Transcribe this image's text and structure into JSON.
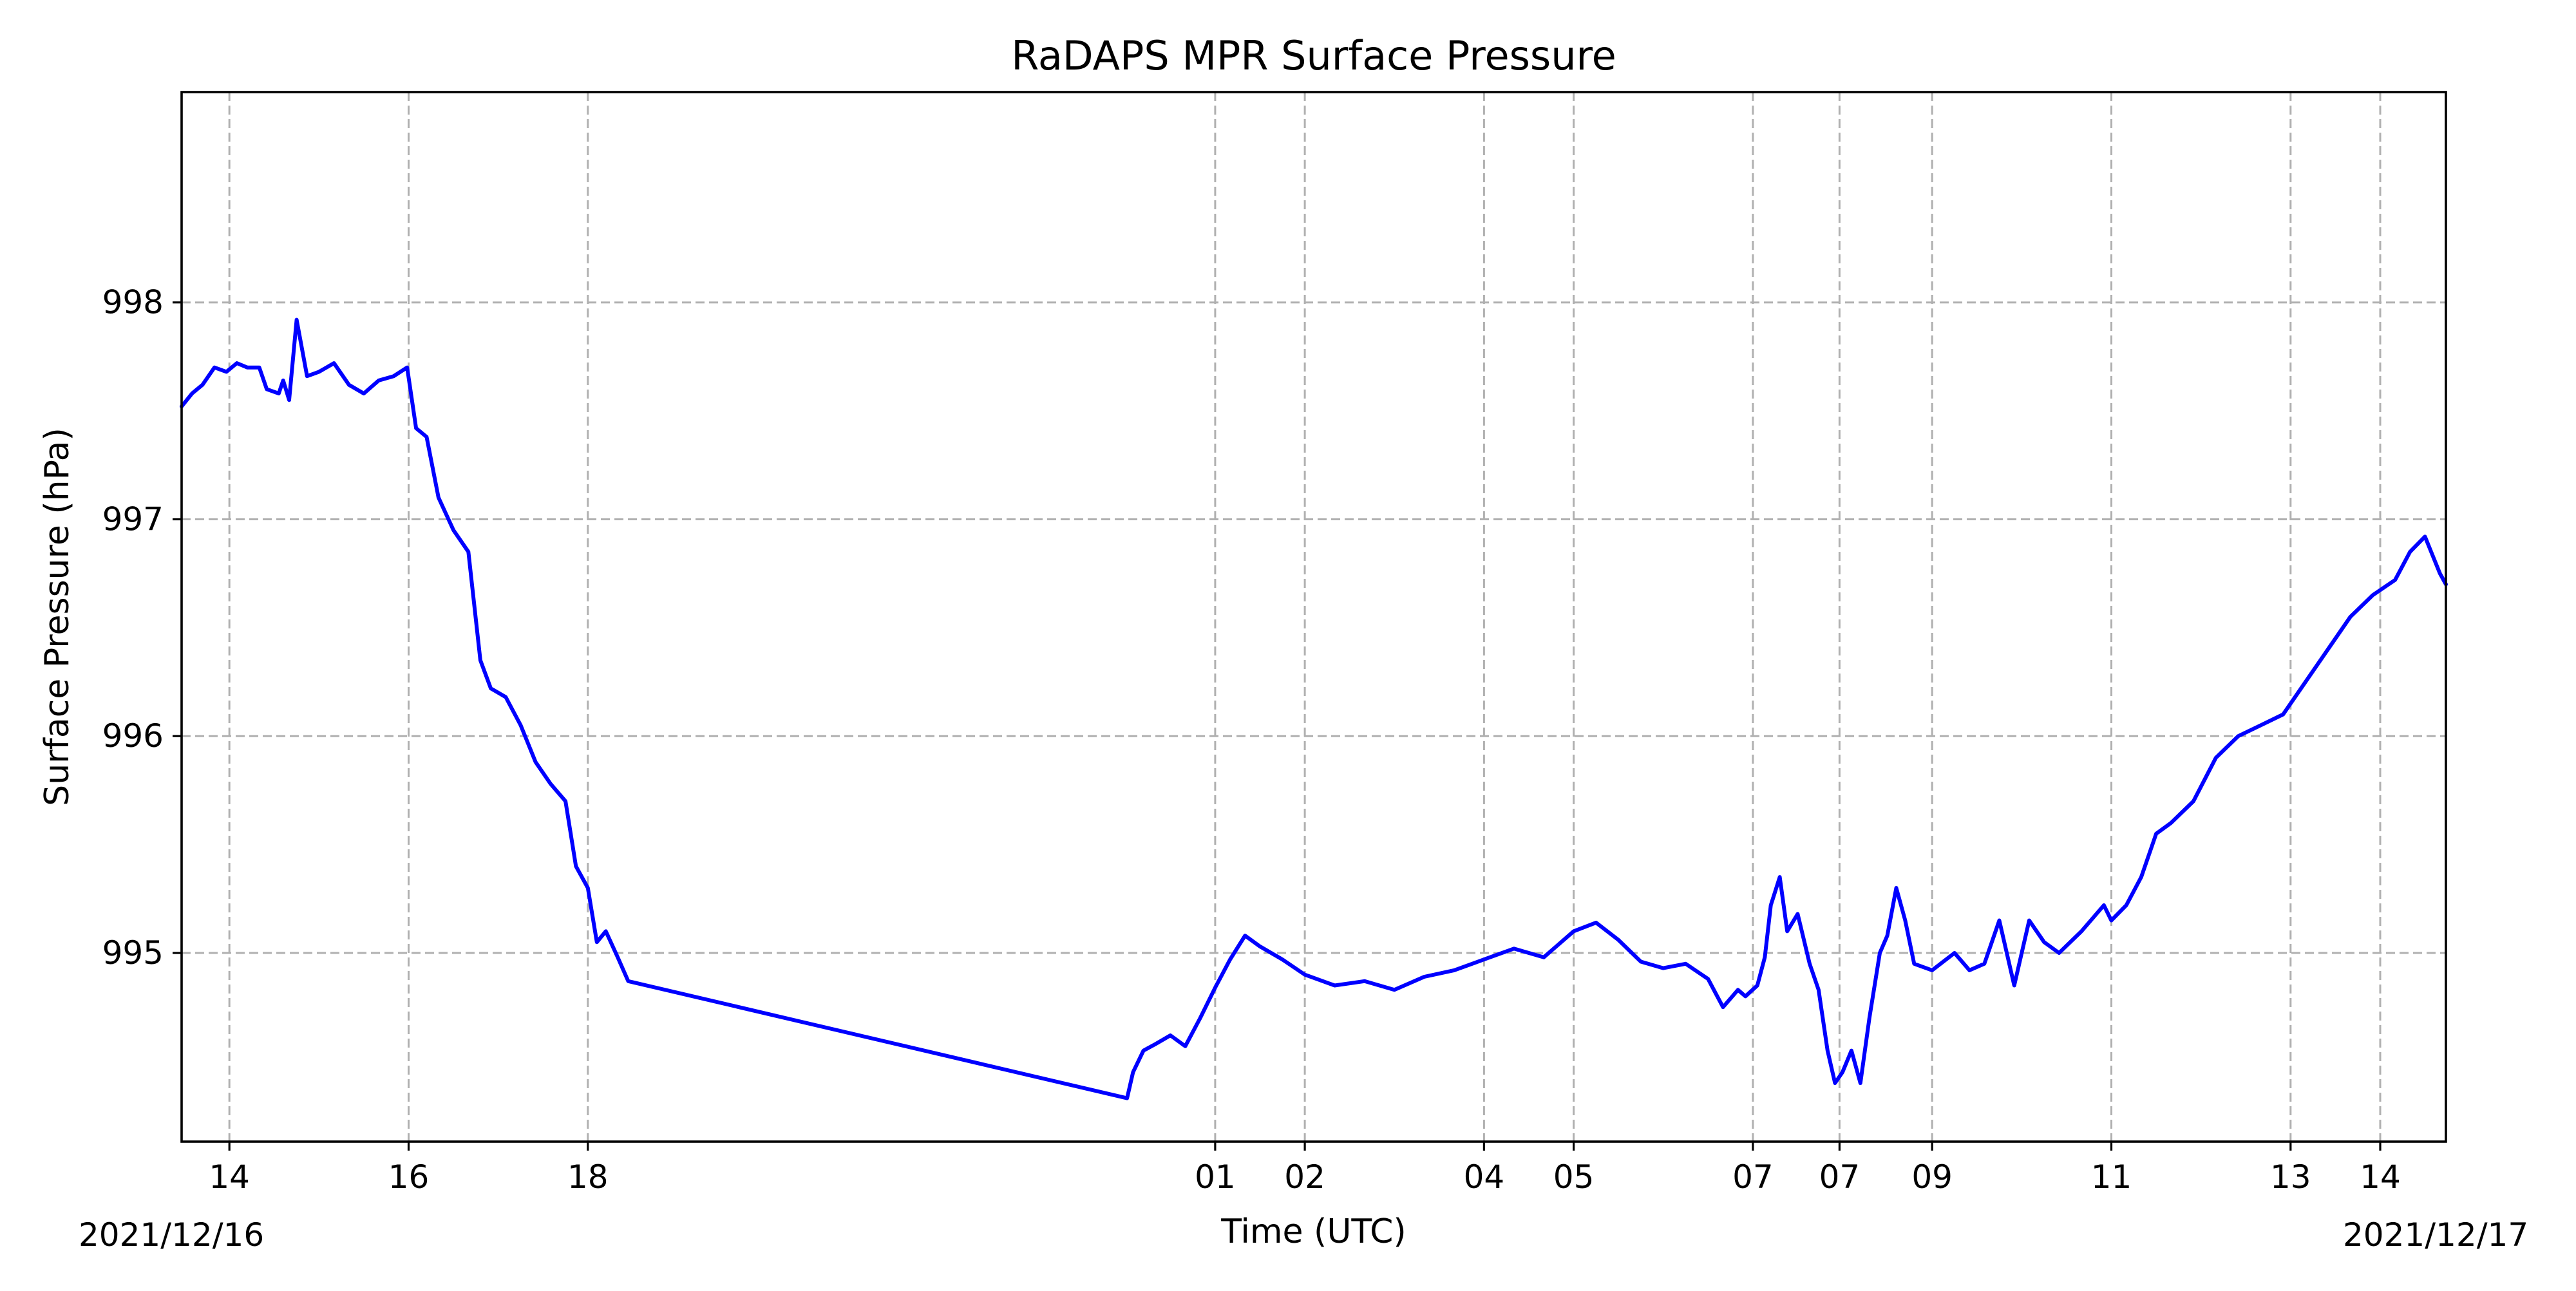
{
  "chart_data": {
    "type": "line",
    "title": "RaDAPS MPR Surface Pressure",
    "xlabel": "Time (UTC)",
    "ylabel": "Surface Pressure (hPa)",
    "date_start_label": "2021/12/16",
    "date_end_label": "2021/12/17",
    "xlim": [
      "2021-12-16T13:28",
      "2021-12-17T14:44"
    ],
    "ylim": [
      994.13,
      998.97
    ],
    "grid": true,
    "legend": "none",
    "line_color": "#0000ff",
    "x_ticks": [
      {
        "label": "14",
        "time": "2021-12-16T14:00"
      },
      {
        "label": "16",
        "time": "2021-12-16T16:00"
      },
      {
        "label": "18",
        "time": "2021-12-16T18:00"
      },
      {
        "label": "01",
        "time": "2021-12-17T01:00"
      },
      {
        "label": "02",
        "time": "2021-12-17T02:00"
      },
      {
        "label": "04",
        "time": "2021-12-17T04:00"
      },
      {
        "label": "05",
        "time": "2021-12-17T05:00"
      },
      {
        "label": "07",
        "time": "2021-12-17T07:00"
      },
      {
        "label": "07",
        "time": "2021-12-17T07:58"
      },
      {
        "label": "09",
        "time": "2021-12-17T09:00"
      },
      {
        "label": "11",
        "time": "2021-12-17T11:00"
      },
      {
        "label": "13",
        "time": "2021-12-17T13:00"
      },
      {
        "label": "14",
        "time": "2021-12-17T14:00"
      }
    ],
    "y_ticks": [
      {
        "label": "995",
        "value": 995
      },
      {
        "label": "996",
        "value": 996
      },
      {
        "label": "997",
        "value": 997
      },
      {
        "label": "998",
        "value": 998
      }
    ],
    "series": [
      {
        "x": [
          "2021-12-16T13:28",
          "2021-12-16T13:35",
          "2021-12-16T13:42",
          "2021-12-16T13:50",
          "2021-12-16T13:58",
          "2021-12-16T14:05",
          "2021-12-16T14:12",
          "2021-12-16T14:20",
          "2021-12-16T14:25",
          "2021-12-16T14:33",
          "2021-12-16T14:36",
          "2021-12-16T14:40",
          "2021-12-16T14:45",
          "2021-12-16T14:52",
          "2021-12-16T15:00",
          "2021-12-16T15:10",
          "2021-12-16T15:20",
          "2021-12-16T15:30",
          "2021-12-16T15:40",
          "2021-12-16T15:50",
          "2021-12-16T15:59",
          "2021-12-16T16:05",
          "2021-12-16T16:12",
          "2021-12-16T16:20",
          "2021-12-16T16:30",
          "2021-12-16T16:40",
          "2021-12-16T16:48",
          "2021-12-16T16:55",
          "2021-12-16T17:05",
          "2021-12-16T17:15",
          "2021-12-16T17:25",
          "2021-12-16T17:35",
          "2021-12-16T17:45",
          "2021-12-16T17:52",
          "2021-12-16T18:00",
          "2021-12-16T18:06",
          "2021-12-16T18:12",
          "2021-12-16T18:20",
          "2021-12-16T18:27",
          "2021-12-17T00:01",
          "2021-12-17T00:05",
          "2021-12-17T00:12",
          "2021-12-17T00:20",
          "2021-12-17T00:30",
          "2021-12-17T00:40",
          "2021-12-17T00:50",
          "2021-12-17T01:00",
          "2021-12-17T01:10",
          "2021-12-17T01:20",
          "2021-12-17T01:30",
          "2021-12-17T01:45",
          "2021-12-17T02:00",
          "2021-12-17T02:20",
          "2021-12-17T02:40",
          "2021-12-17T03:00",
          "2021-12-17T03:20",
          "2021-12-17T03:40",
          "2021-12-17T04:00",
          "2021-12-17T04:20",
          "2021-12-17T04:40",
          "2021-12-17T05:00",
          "2021-12-17T05:15",
          "2021-12-17T05:30",
          "2021-12-17T05:45",
          "2021-12-17T06:00",
          "2021-12-17T06:15",
          "2021-12-17T06:30",
          "2021-12-17T06:40",
          "2021-12-17T06:50",
          "2021-12-17T06:55",
          "2021-12-17T07:03",
          "2021-12-17T07:08",
          "2021-12-17T07:12",
          "2021-12-17T07:18",
          "2021-12-17T07:23",
          "2021-12-17T07:30",
          "2021-12-17T07:38",
          "2021-12-17T07:44",
          "2021-12-17T07:50",
          "2021-12-17T07:55",
          "2021-12-17T08:00",
          "2021-12-17T08:06",
          "2021-12-17T08:12",
          "2021-12-17T08:18",
          "2021-12-17T08:25",
          "2021-12-17T08:30",
          "2021-12-17T08:36",
          "2021-12-17T08:42",
          "2021-12-17T08:48",
          "2021-12-17T09:00",
          "2021-12-17T09:15",
          "2021-12-17T09:25",
          "2021-12-17T09:35",
          "2021-12-17T09:45",
          "2021-12-17T09:55",
          "2021-12-17T10:05",
          "2021-12-17T10:15",
          "2021-12-17T10:25",
          "2021-12-17T10:40",
          "2021-12-17T10:55",
          "2021-12-17T11:00",
          "2021-12-17T11:10",
          "2021-12-17T11:20",
          "2021-12-17T11:30",
          "2021-12-17T11:40",
          "2021-12-17T11:55",
          "2021-12-17T12:10",
          "2021-12-17T12:25",
          "2021-12-17T12:40",
          "2021-12-17T12:55",
          "2021-12-17T13:10",
          "2021-12-17T13:25",
          "2021-12-17T13:40",
          "2021-12-17T13:55",
          "2021-12-17T14:10",
          "2021-12-17T14:20",
          "2021-12-17T14:30",
          "2021-12-17T14:40",
          "2021-12-17T14:44"
        ],
        "y": [
          997.52,
          997.58,
          997.62,
          997.7,
          997.68,
          997.72,
          997.7,
          997.7,
          997.6,
          997.58,
          997.64,
          997.55,
          997.92,
          997.66,
          997.68,
          997.72,
          997.62,
          997.58,
          997.64,
          997.66,
          997.7,
          997.42,
          997.38,
          997.1,
          996.95,
          996.85,
          996.35,
          996.22,
          996.18,
          996.05,
          995.88,
          995.78,
          995.7,
          995.4,
          995.3,
          995.05,
          995.1,
          994.98,
          994.87,
          994.33,
          994.45,
          994.55,
          994.58,
          994.62,
          994.57,
          994.7,
          994.84,
          994.97,
          995.08,
          995.03,
          994.97,
          994.9,
          994.85,
          994.87,
          994.83,
          994.89,
          994.92,
          994.97,
          995.02,
          994.98,
          995.1,
          995.14,
          995.06,
          994.96,
          994.93,
          994.95,
          994.88,
          994.75,
          994.83,
          994.8,
          994.85,
          994.98,
          995.22,
          995.35,
          995.1,
          995.18,
          994.95,
          994.83,
          994.55,
          994.4,
          994.45,
          994.55,
          994.4,
          994.7,
          995.0,
          995.08,
          995.3,
          995.15,
          994.95,
          994.92,
          995.0,
          994.92,
          994.95,
          995.15,
          994.85,
          995.15,
          995.05,
          995.0,
          995.1,
          995.22,
          995.15,
          995.22,
          995.35,
          995.55,
          995.6,
          995.7,
          995.9,
          996.0,
          996.05,
          996.1,
          996.25,
          996.4,
          996.55,
          996.65,
          996.72,
          996.85,
          996.92,
          996.75,
          996.7
        ]
      }
    ]
  }
}
